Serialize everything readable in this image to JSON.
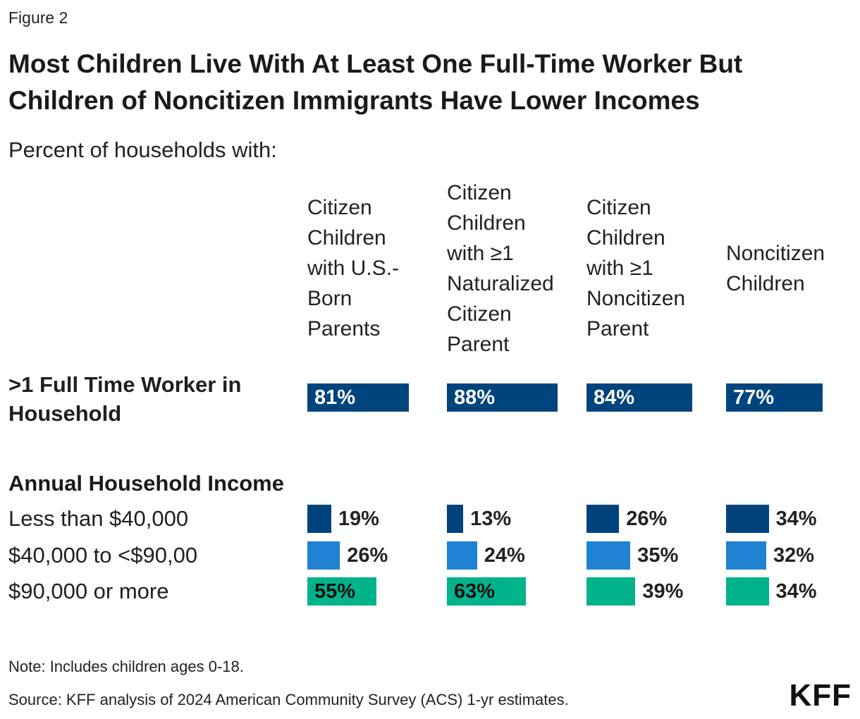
{
  "figure_label": "Figure 2",
  "title_lines": [
    "Most Children Live With At Least One Full-Time Worker But",
    "Children of Noncitizen Immigrants Have Lower Incomes"
  ],
  "subtitle": "Percent of households with:",
  "colors": {
    "dark_blue": "#00437c",
    "mid_blue": "#1f82d3",
    "teal": "#00b38b",
    "worker_bar": "#00447e"
  },
  "note": "Note: Includes children ages 0-18.",
  "source": "Source: KFF analysis of 2024 American Community Survey (ACS) 1-yr estimates.",
  "logo_text": "KFF",
  "chart_data": {
    "type": "bar",
    "columns": [
      {
        "header_lines": [
          "Citizen",
          "Children",
          "with U.S.-",
          "Born",
          "Parents"
        ]
      },
      {
        "header_lines": [
          "Citizen",
          "Children",
          "with ≥1",
          "Naturalized",
          "Citizen",
          "Parent"
        ]
      },
      {
        "header_lines": [
          "Citizen",
          "Children",
          "with ≥1",
          "Noncitizen",
          "Parent"
        ]
      },
      {
        "header_lines": [
          "Noncitizen",
          "Children"
        ]
      }
    ],
    "worker_row": {
      "label_lines": [
        ">1 Full Time Worker in",
        "Household"
      ],
      "values": [
        81,
        88,
        84,
        77
      ],
      "labels": [
        "81%",
        "88%",
        "84%",
        "77%"
      ]
    },
    "income_group_label": "Annual Household Income",
    "income_rows": [
      {
        "label": "Less than $40,000",
        "values": [
          19,
          13,
          26,
          34
        ],
        "labels": [
          "19%",
          "13%",
          "26%",
          "34%"
        ],
        "color": "#00437c"
      },
      {
        "label": "$40,000 to <$90,00",
        "values": [
          26,
          24,
          35,
          32
        ],
        "labels": [
          "26%",
          "24%",
          "35%",
          "32%"
        ],
        "color": "#1f82d3"
      },
      {
        "label": "$90,000 or more",
        "values": [
          55,
          63,
          39,
          34
        ],
        "labels": [
          "55%",
          "63%",
          "39%",
          "34%"
        ],
        "color": "#00b38b"
      }
    ]
  }
}
